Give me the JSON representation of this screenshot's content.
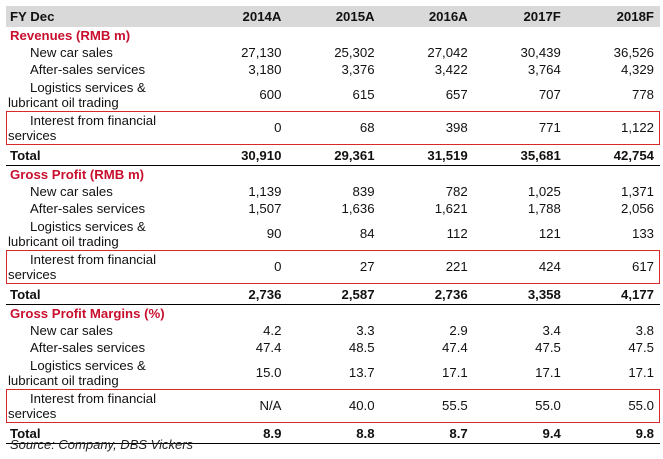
{
  "header": {
    "label": "FY Dec",
    "years": [
      "2014A",
      "2015A",
      "2016A",
      "2017F",
      "2018F"
    ]
  },
  "sections": [
    {
      "title": "Revenues (RMB m)",
      "rows": [
        {
          "label": "New car sales",
          "values": [
            "27,130",
            "25,302",
            "27,042",
            "30,439",
            "36,526"
          ]
        },
        {
          "label": "After-sales services",
          "values": [
            "3,180",
            "3,376",
            "3,422",
            "3,764",
            "4,329"
          ]
        },
        {
          "label_line1": "Logistics services &",
          "label_line2": "lubricant oil trading",
          "values": [
            "600",
            "615",
            "657",
            "707",
            "778"
          ]
        },
        {
          "label_line1": "Interest from financial",
          "label_line2": "services",
          "values": [
            "0",
            "68",
            "398",
            "771",
            "1,122"
          ]
        }
      ],
      "total": {
        "label": "Total",
        "values": [
          "30,910",
          "29,361",
          "31,519",
          "35,681",
          "42,754"
        ]
      }
    },
    {
      "title": "Gross Profit (RMB m)",
      "rows": [
        {
          "label": "New car sales",
          "values": [
            "1,139",
            "839",
            "782",
            "1,025",
            "1,371"
          ]
        },
        {
          "label": "After-sales services",
          "values": [
            "1,507",
            "1,636",
            "1,621",
            "1,788",
            "2,056"
          ]
        },
        {
          "label_line1": "Logistics services &",
          "label_line2": "lubricant oil trading",
          "values": [
            "90",
            "84",
            "112",
            "121",
            "133"
          ]
        },
        {
          "label_line1": "Interest from financial",
          "label_line2": "services",
          "values": [
            "0",
            "27",
            "221",
            "424",
            "617"
          ]
        }
      ],
      "total": {
        "label": "Total",
        "values": [
          "2,736",
          "2,587",
          "2,736",
          "3,358",
          "4,177"
        ]
      }
    },
    {
      "title": "Gross Profit Margins (%)",
      "rows": [
        {
          "label": "New car sales",
          "values": [
            "4.2",
            "3.3",
            "2.9",
            "3.4",
            "3.8"
          ]
        },
        {
          "label": "After-sales services",
          "values": [
            "47.4",
            "48.5",
            "47.4",
            "47.5",
            "47.5"
          ]
        },
        {
          "label_line1": "Logistics services &",
          "label_line2": "lubricant oil trading",
          "values": [
            "15.0",
            "13.7",
            "17.1",
            "17.1",
            "17.1"
          ]
        },
        {
          "label_line1": "Interest from financial",
          "label_line2": "services",
          "values": [
            "N/A",
            "40.0",
            "55.5",
            "55.0",
            "55.0"
          ]
        }
      ],
      "total": {
        "label": "Total",
        "values": [
          "8.9",
          "8.8",
          "8.7",
          "9.4",
          "9.8"
        ]
      }
    }
  ],
  "source": "Source: Company, DBS Vickers",
  "colors": {
    "section_title": "#c8102e",
    "highlight_box": "#d42a2a",
    "header_bg": "#d9d9d9"
  }
}
